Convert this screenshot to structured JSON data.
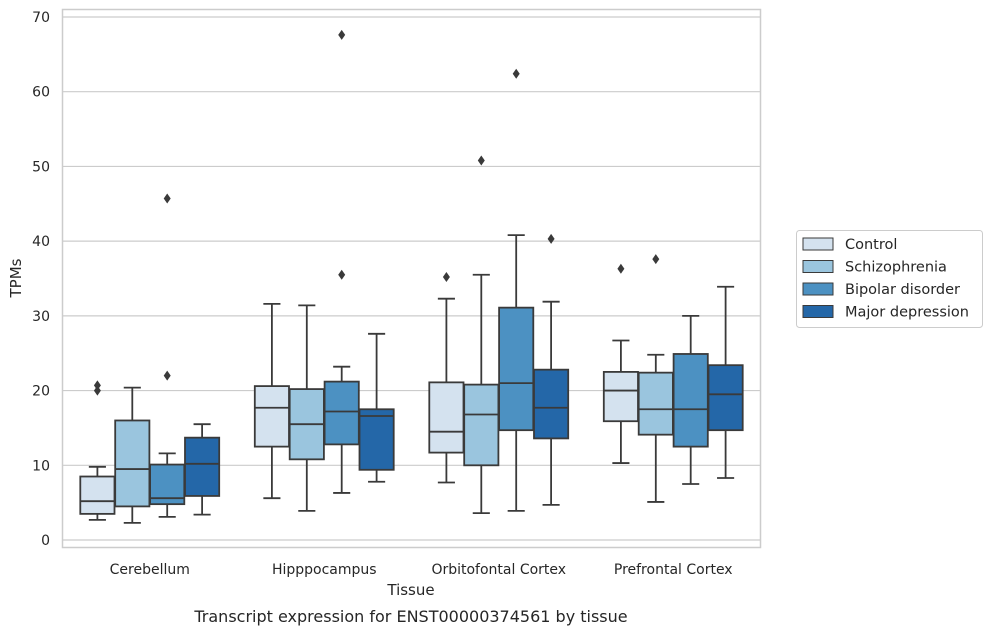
{
  "chart_data": {
    "type": "box",
    "title": "",
    "caption": "Transcript expression for ENST00000374561 by tissue",
    "xlabel": "Tissue",
    "ylabel": "TPMs",
    "ylim": [
      -1,
      71
    ],
    "yticks": [
      0,
      10,
      20,
      30,
      40,
      50,
      60,
      70
    ],
    "grid": "horizontal",
    "legend_position": "right",
    "palette": [
      "#d4e2ef",
      "#9ac5de",
      "#4c91c2",
      "#2467a8"
    ],
    "categories": [
      "Cerebellum",
      "Hipppocampus",
      "Orbitofontal Cortex",
      "Prefrontal Cortex"
    ],
    "series": [
      {
        "name": "Control",
        "boxes": [
          {
            "whislo": 2.7,
            "q1": 3.5,
            "med": 5.2,
            "q3": 8.5,
            "whishi": 9.8,
            "fliers": [
              20.0,
              20.7
            ]
          },
          {
            "whislo": 5.6,
            "q1": 12.5,
            "med": 17.7,
            "q3": 20.6,
            "whishi": 31.6,
            "fliers": []
          },
          {
            "whislo": 7.7,
            "q1": 11.7,
            "med": 14.5,
            "q3": 21.1,
            "whishi": 32.3,
            "fliers": [
              35.2
            ]
          },
          {
            "whislo": 10.3,
            "q1": 15.9,
            "med": 20.0,
            "q3": 22.5,
            "whishi": 26.7,
            "fliers": [
              36.3
            ]
          }
        ]
      },
      {
        "name": "Schizophrenia",
        "boxes": [
          {
            "whislo": 2.3,
            "q1": 4.5,
            "med": 9.5,
            "q3": 16.0,
            "whishi": 20.4,
            "fliers": []
          },
          {
            "whislo": 3.9,
            "q1": 10.8,
            "med": 15.5,
            "q3": 20.2,
            "whishi": 31.4,
            "fliers": []
          },
          {
            "whislo": 3.6,
            "q1": 10.0,
            "med": 16.8,
            "q3": 20.8,
            "whishi": 35.5,
            "fliers": [
              50.8
            ]
          },
          {
            "whislo": 5.1,
            "q1": 14.1,
            "med": 17.5,
            "q3": 22.4,
            "whishi": 24.8,
            "fliers": [
              37.6
            ]
          }
        ]
      },
      {
        "name": "Bipolar disorder",
        "boxes": [
          {
            "whislo": 3.1,
            "q1": 4.8,
            "med": 5.6,
            "q3": 10.1,
            "whishi": 11.6,
            "fliers": [
              22.0,
              45.7
            ]
          },
          {
            "whislo": 6.3,
            "q1": 12.8,
            "med": 17.2,
            "q3": 21.2,
            "whishi": 23.2,
            "fliers": [
              35.5,
              67.6
            ]
          },
          {
            "whislo": 3.9,
            "q1": 14.7,
            "med": 21.0,
            "q3": 31.1,
            "whishi": 40.8,
            "fliers": [
              62.4
            ]
          },
          {
            "whislo": 7.5,
            "q1": 12.5,
            "med": 17.5,
            "q3": 24.9,
            "whishi": 30.0,
            "fliers": []
          }
        ]
      },
      {
        "name": "Major depression",
        "boxes": [
          {
            "whislo": 3.4,
            "q1": 5.9,
            "med": 10.2,
            "q3": 13.7,
            "whishi": 15.5,
            "fliers": []
          },
          {
            "whislo": 7.8,
            "q1": 9.4,
            "med": 16.6,
            "q3": 17.5,
            "whishi": 27.6,
            "fliers": []
          },
          {
            "whislo": 4.7,
            "q1": 13.6,
            "med": 17.7,
            "q3": 22.8,
            "whishi": 31.9,
            "fliers": [
              40.3
            ]
          },
          {
            "whislo": 8.3,
            "q1": 14.7,
            "med": 19.5,
            "q3": 23.4,
            "whishi": 33.9,
            "fliers": []
          }
        ]
      }
    ]
  }
}
